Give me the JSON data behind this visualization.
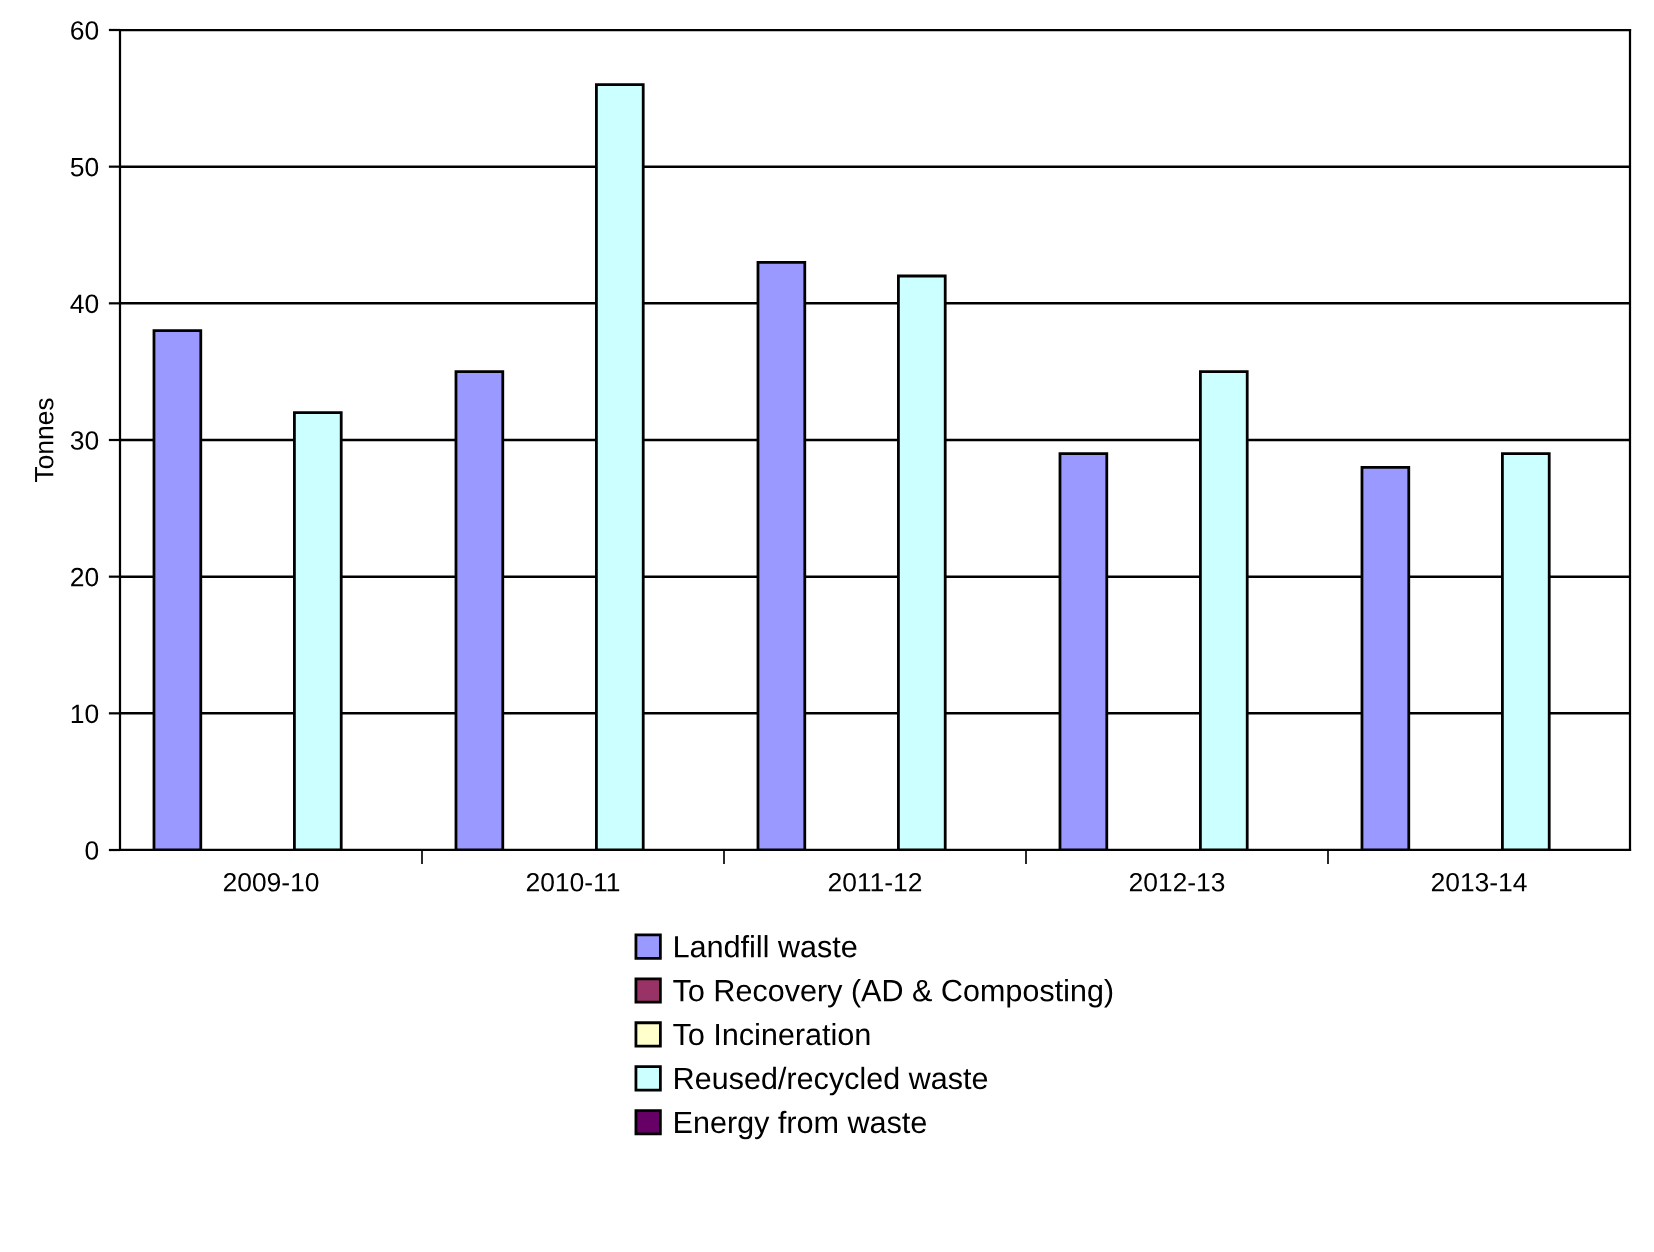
{
  "chart_data": {
    "type": "bar",
    "ylabel": "Tonnes",
    "categories": [
      "2009-10",
      "2010-11",
      "2011-12",
      "2012-13",
      "2013-14"
    ],
    "series": [
      {
        "name": "Landfill waste",
        "color": "#9999ff",
        "values": [
          38,
          35,
          43,
          29,
          28
        ]
      },
      {
        "name": "To Recovery (AD & Composting)",
        "color": "#993366",
        "values": [
          0,
          0,
          0,
          0,
          0
        ]
      },
      {
        "name": "To Incineration",
        "color": "#ffffcc",
        "values": [
          0,
          0,
          0,
          0,
          0
        ]
      },
      {
        "name": "Reused/recycled waste",
        "color": "#ccffff",
        "values": [
          32,
          56,
          42,
          35,
          29
        ]
      },
      {
        "name": "Energy from waste",
        "color": "#660066",
        "values": [
          0,
          0,
          0,
          0,
          0
        ]
      }
    ],
    "ylim": [
      0,
      60
    ],
    "yticks": [
      0,
      10,
      20,
      30,
      40,
      50,
      60
    ],
    "grid": "y",
    "legend": "bottom"
  }
}
